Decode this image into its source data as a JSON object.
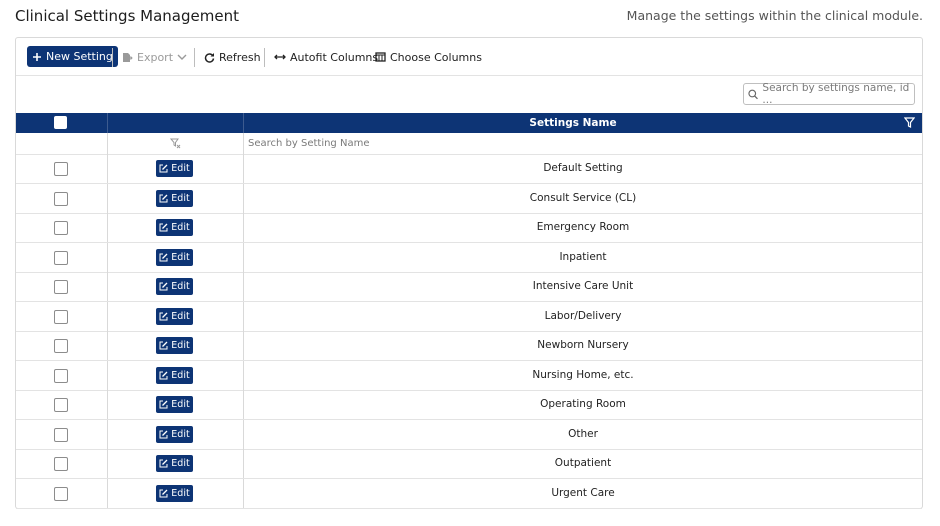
{
  "header": {
    "title": "Clinical Settings Management",
    "description": "Manage the settings within the clinical module."
  },
  "toolbar": {
    "new": "New Setting",
    "export": "Export",
    "refresh": "Refresh",
    "autofit": "Autofit Columns",
    "choose": "Choose Columns"
  },
  "search": {
    "placeholder": "Search by settings name, id ..."
  },
  "table": {
    "columns": [
      "Settings Name"
    ],
    "filter_placeholder": "Search by Setting Name",
    "rows": [
      {
        "action": "Edit",
        "name": "Default Setting"
      },
      {
        "action": "Edit",
        "name": "Consult Service (CL)"
      },
      {
        "action": "Edit",
        "name": "Emergency Room"
      },
      {
        "action": "Edit",
        "name": "Inpatient"
      },
      {
        "action": "Edit",
        "name": "Intensive Care Unit"
      },
      {
        "action": "Edit",
        "name": "Labor/Delivery"
      },
      {
        "action": "Edit",
        "name": "Newborn Nursery"
      },
      {
        "action": "Edit",
        "name": "Nursing Home, etc."
      },
      {
        "action": "Edit",
        "name": "Operating Room"
      },
      {
        "action": "Edit",
        "name": "Other"
      },
      {
        "action": "Edit",
        "name": "Outpatient"
      },
      {
        "action": "Edit",
        "name": "Urgent Care"
      }
    ]
  }
}
